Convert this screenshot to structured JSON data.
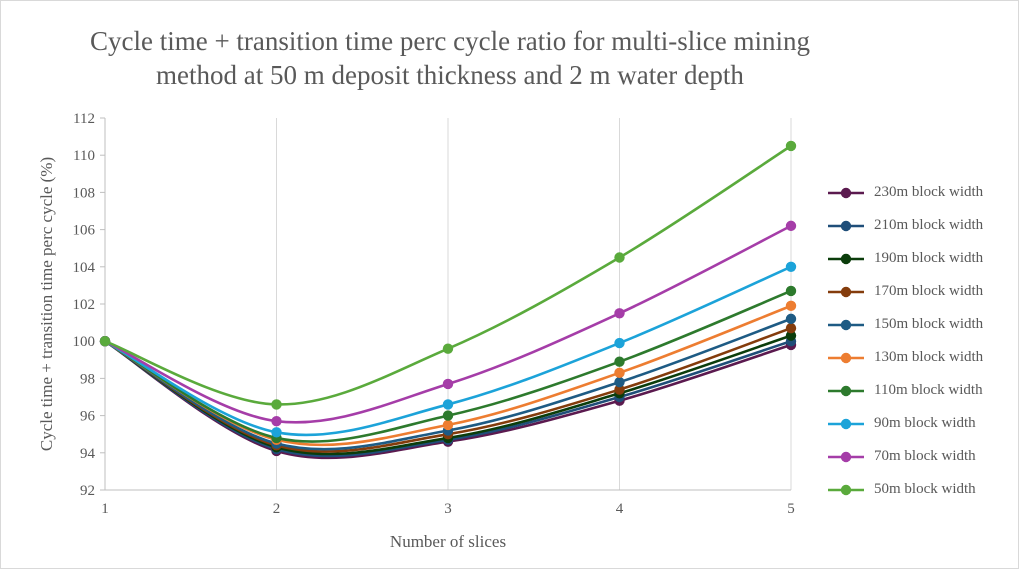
{
  "chart_data": {
    "type": "line",
    "title": "Cycle time + transition time perc cycle ratio for multi-slice mining method at 50 m deposit thickness and 2 m water depth",
    "xlabel": "Number of slices",
    "ylabel": "Cycle time + transition time perc cycle  (%)",
    "x": [
      1,
      2,
      3,
      4,
      5
    ],
    "ylim": [
      92,
      112
    ],
    "yticks": [
      "92",
      "94",
      "96",
      "98",
      "100",
      "102",
      "104",
      "106",
      "108",
      "110",
      "112"
    ],
    "xticks": [
      "1",
      "2",
      "3",
      "4",
      "5"
    ],
    "grid": "vertical",
    "legend_position": "right",
    "series": [
      {
        "name": "230m block width",
        "color": "#5b1a4f",
        "values": [
          100,
          94.1,
          94.6,
          96.8,
          99.8
        ]
      },
      {
        "name": "210m block width",
        "color": "#1f4e79",
        "values": [
          100,
          94.2,
          94.7,
          97.0,
          100.0
        ]
      },
      {
        "name": "190m block width",
        "color": "#0b3d0b",
        "values": [
          100,
          94.3,
          94.8,
          97.2,
          100.3
        ]
      },
      {
        "name": "170m block width",
        "color": "#843c0c",
        "values": [
          100,
          94.4,
          95.0,
          97.4,
          100.7
        ]
      },
      {
        "name": "150m block width",
        "color": "#1e5b84",
        "values": [
          100,
          94.5,
          95.2,
          97.8,
          101.2
        ]
      },
      {
        "name": "130m block width",
        "color": "#ed7d31",
        "values": [
          100,
          94.7,
          95.5,
          98.3,
          101.9
        ]
      },
      {
        "name": "110m block width",
        "color": "#2d7a2d",
        "values": [
          100,
          94.8,
          96.0,
          98.9,
          102.7
        ]
      },
      {
        "name": "90m block width",
        "color": "#1ca3d9",
        "values": [
          100,
          95.1,
          96.6,
          99.9,
          104.0
        ]
      },
      {
        "name": "70m block width",
        "color": "#a53da8",
        "values": [
          100,
          95.7,
          97.7,
          101.5,
          106.2
        ]
      },
      {
        "name": "50m block width",
        "color": "#5aaa3c",
        "values": [
          100,
          96.6,
          99.6,
          104.5,
          110.5
        ]
      }
    ]
  }
}
